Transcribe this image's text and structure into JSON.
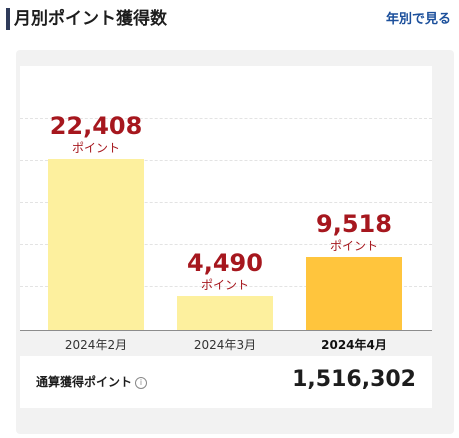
{
  "header": {
    "title": "月別ポイント獲得数",
    "yearly_link": "年別で見る"
  },
  "chart_data": {
    "type": "bar",
    "categories": [
      "2024年2月",
      "2024年3月",
      "2024年4月"
    ],
    "values": [
      22408,
      4490,
      9518
    ],
    "value_labels": [
      "22,408",
      "4,490",
      "9,518"
    ],
    "unit": "ポイント",
    "highlighted_index": 2,
    "colors": {
      "normal": "#fdf09e",
      "highlight": "#ffc53d",
      "value_text": "#a6171e"
    }
  },
  "summary": {
    "label": "通算獲得ポイント",
    "value": "1,516,302"
  }
}
